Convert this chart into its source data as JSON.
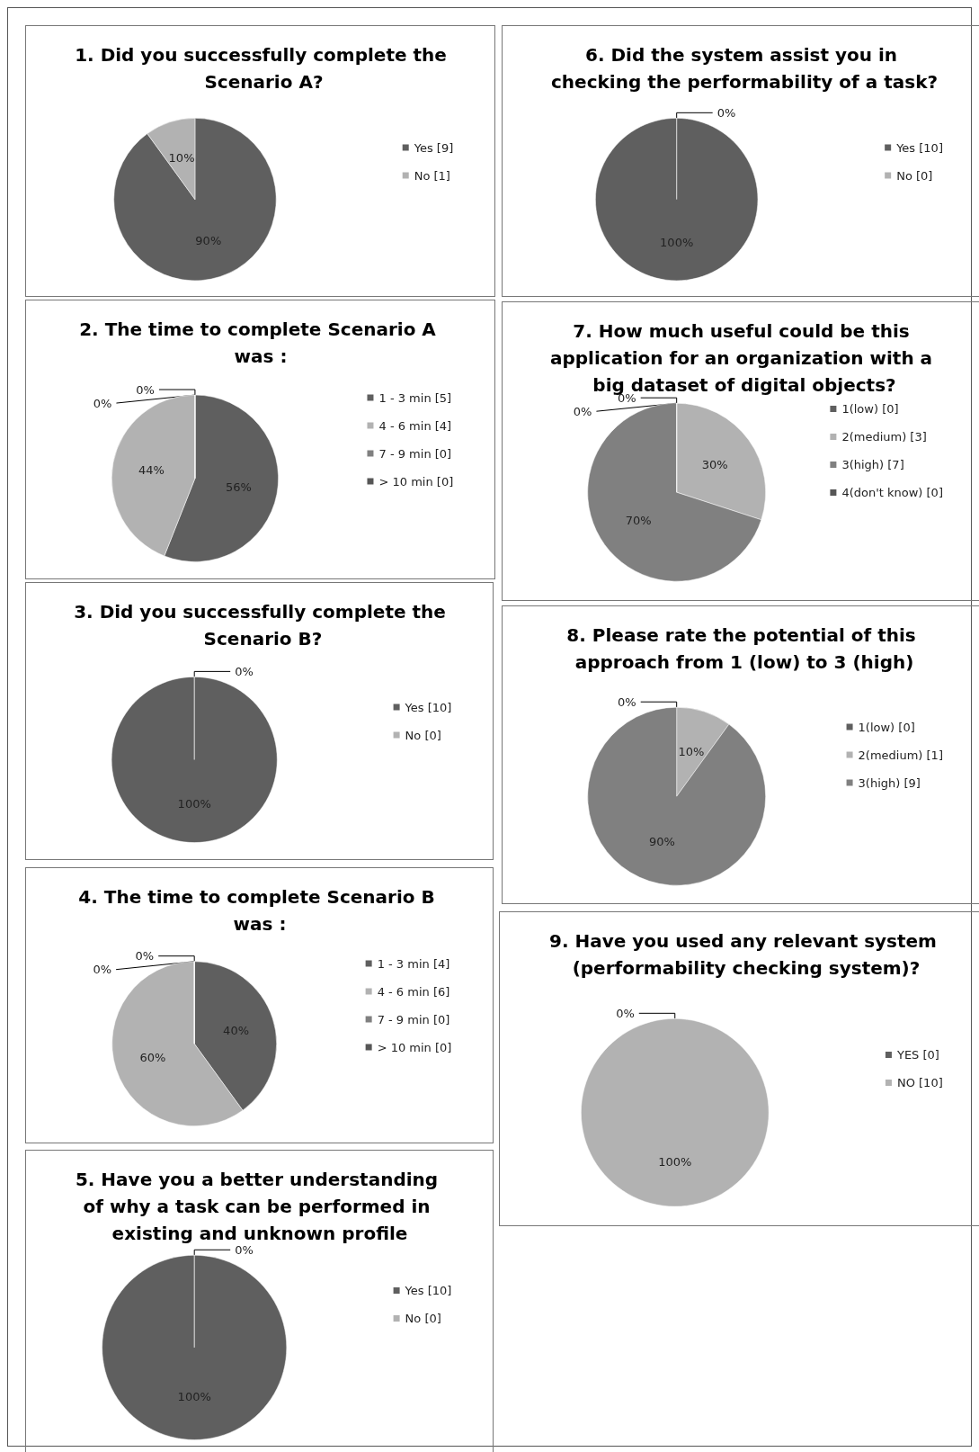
{
  "chart_data": [
    {
      "type": "pie",
      "title": "1. Did you successfully complete the Scenario A?",
      "categories": [
        "Yes [9]",
        "No [1]"
      ],
      "values": [
        90,
        10
      ],
      "value_labels": [
        "90%",
        "10%"
      ],
      "colors": [
        "#5f5f5f",
        "#b2b2b2"
      ],
      "legend": "right"
    },
    {
      "type": "pie",
      "title": "2. The time to complete Scenario A was :",
      "categories": [
        "1 - 3 min [5]",
        "4 - 6 min [4]",
        "7 - 9 min [0]",
        "> 10 min [0]"
      ],
      "values": [
        56,
        44,
        0,
        0
      ],
      "value_labels": [
        "56%",
        "44%",
        "0%",
        "0%"
      ],
      "colors": [
        "#5f5f5f",
        "#b2b2b2",
        "#808080",
        "#565656"
      ],
      "legend": "right"
    },
    {
      "type": "pie",
      "title": "3. Did you successfully complete the Scenario B?",
      "categories": [
        "Yes [10]",
        "No [0]"
      ],
      "values": [
        100,
        0
      ],
      "value_labels": [
        "100%",
        "0%"
      ],
      "colors": [
        "#5f5f5f",
        "#b2b2b2"
      ],
      "legend": "right"
    },
    {
      "type": "pie",
      "title": "4. The time to complete Scenario B was :",
      "categories": [
        "1 - 3 min [4]",
        "4 - 6 min [6]",
        "7 - 9 min [0]",
        "> 10 min [0]"
      ],
      "values": [
        40,
        60,
        0,
        0
      ],
      "value_labels": [
        "40%",
        "60%",
        "0%",
        "0%"
      ],
      "colors": [
        "#5f5f5f",
        "#b2b2b2",
        "#808080",
        "#565656"
      ],
      "legend": "right"
    },
    {
      "type": "pie",
      "title": "5. Have you a better understanding of why a task can be performed in existing and unknown profile",
      "categories": [
        "Yes [10]",
        "No [0]"
      ],
      "values": [
        100,
        0
      ],
      "value_labels": [
        "100%",
        "0%"
      ],
      "colors": [
        "#5f5f5f",
        "#b2b2b2"
      ],
      "legend": "right"
    },
    {
      "type": "pie",
      "title": "6. Did the system assist you in checking the performability of a task?",
      "categories": [
        "Yes [10]",
        "No [0]"
      ],
      "values": [
        100,
        0
      ],
      "value_labels": [
        "100%",
        "0%"
      ],
      "colors": [
        "#5f5f5f",
        "#b2b2b2"
      ],
      "legend": "right"
    },
    {
      "type": "pie",
      "title": "7. How much useful could be this application for an organization with a big dataset of digital objects?",
      "categories": [
        "1(low) [0]",
        "2(medium) [3]",
        "3(high) [7]",
        "4(don't know) [0]"
      ],
      "values": [
        0,
        30,
        70,
        0
      ],
      "value_labels": [
        "0%",
        "30%",
        "70%",
        "0%"
      ],
      "colors": [
        "#5f5f5f",
        "#b2b2b2",
        "#808080",
        "#565656"
      ],
      "legend": "right"
    },
    {
      "type": "pie",
      "title": "8. Please rate the potential of this approach from 1 (low) to 3 (high)",
      "categories": [
        "1(low) [0]",
        "2(medium) [1]",
        "3(high) [9]"
      ],
      "values": [
        0,
        10,
        90
      ],
      "value_labels": [
        "0%",
        "10%",
        "90%"
      ],
      "colors": [
        "#5f5f5f",
        "#b2b2b2",
        "#808080"
      ],
      "legend": "right"
    },
    {
      "type": "pie",
      "title": "9. Have you used any relevant system (performability checking system)?",
      "categories": [
        "YES [0]",
        "NO [10]"
      ],
      "values": [
        0,
        100
      ],
      "value_labels": [
        "0%",
        "100%"
      ],
      "colors": [
        "#5f5f5f",
        "#b2b2b2"
      ],
      "legend": "right"
    }
  ]
}
